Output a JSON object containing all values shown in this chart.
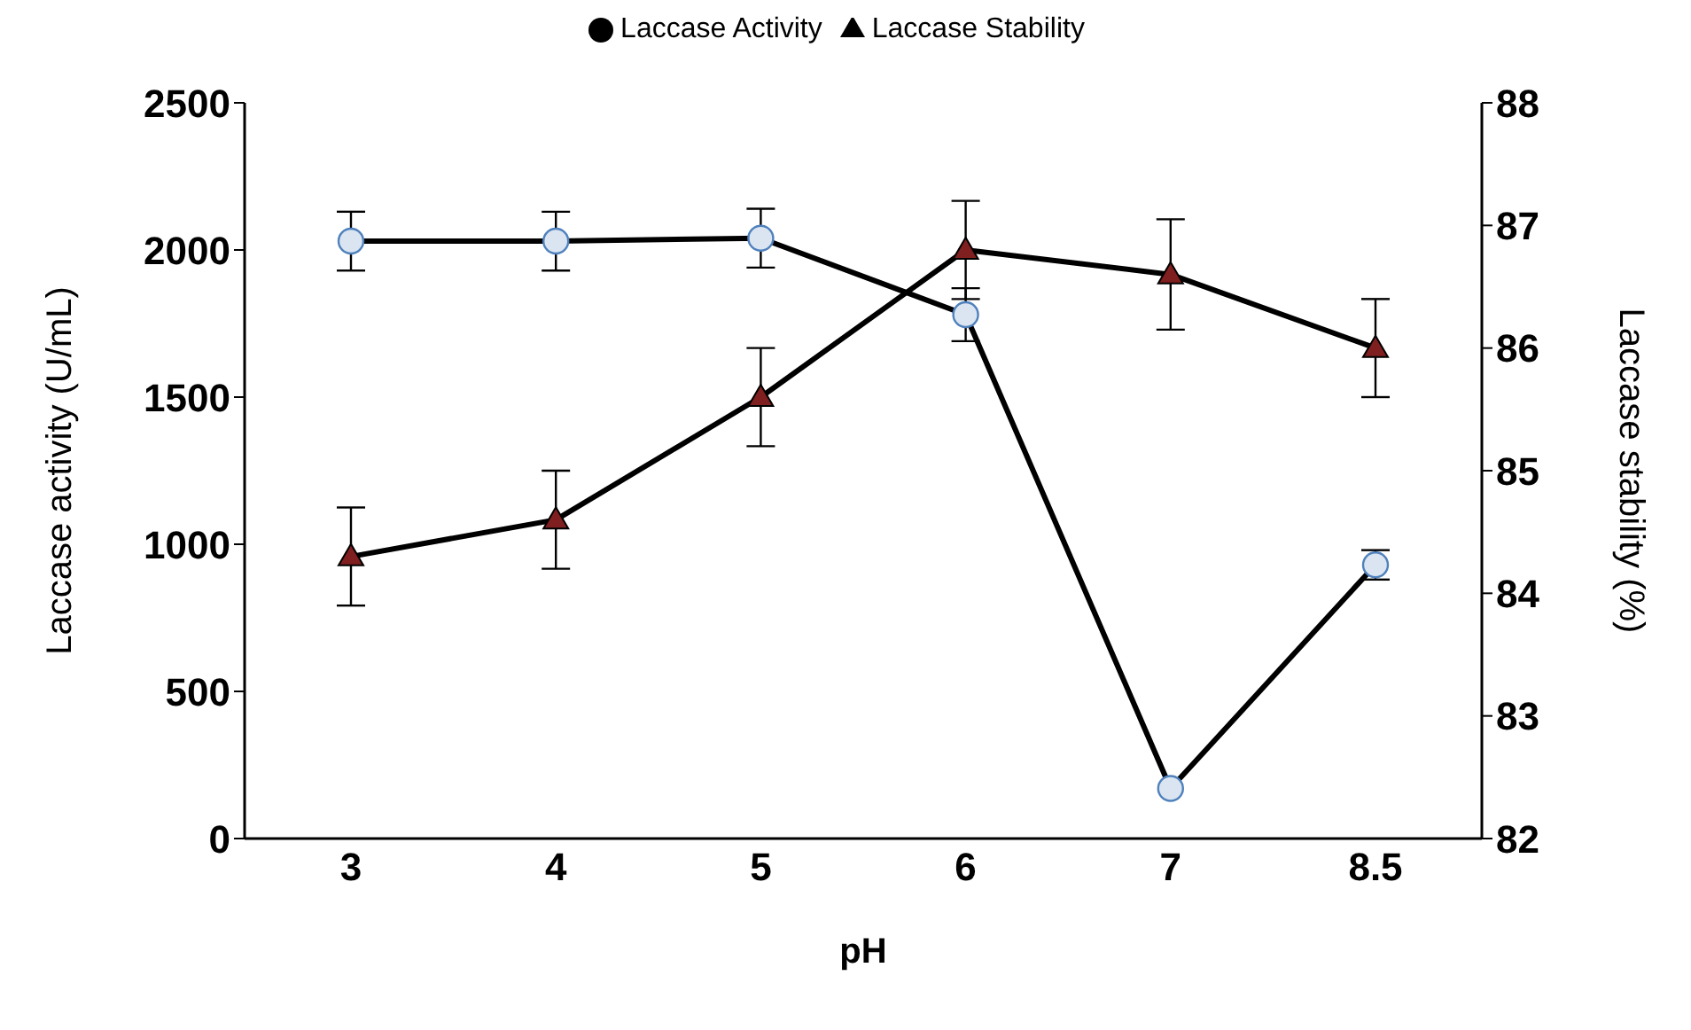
{
  "chart_data": {
    "type": "line",
    "xlabel": "pH",
    "ylabel": "Laccase activity (U/mL)",
    "y2label": "Laccase stability (%)",
    "categories": [
      "3",
      "4",
      "5",
      "6",
      "7",
      "8.5"
    ],
    "series": [
      {
        "name": "Laccase Activity",
        "color": "#000000",
        "marker": "circle",
        "values": [
          2030,
          2030,
          2040,
          1780,
          170,
          930
        ],
        "errors": [
          100,
          100,
          100,
          90,
          null,
          50
        ]
      },
      {
        "name": "Laccase Stability",
        "color": "#000000",
        "marker": "triangle",
        "axis": "y2",
        "values": [
          84.3,
          84.6,
          85.6,
          86.8,
          86.6,
          86.0
        ],
        "errors": [
          0.4,
          0.4,
          0.4,
          0.4,
          0.45,
          0.4
        ]
      }
    ],
    "ylim": [
      0,
      2500
    ],
    "yticks": [
      0,
      500,
      1000,
      1500,
      2000,
      2500
    ],
    "y2lim": [
      82,
      88
    ],
    "y2ticks": [
      82,
      83,
      84,
      85,
      86,
      87,
      88
    ],
    "grid": false,
    "legend": "top",
    "line_style": "solid"
  }
}
